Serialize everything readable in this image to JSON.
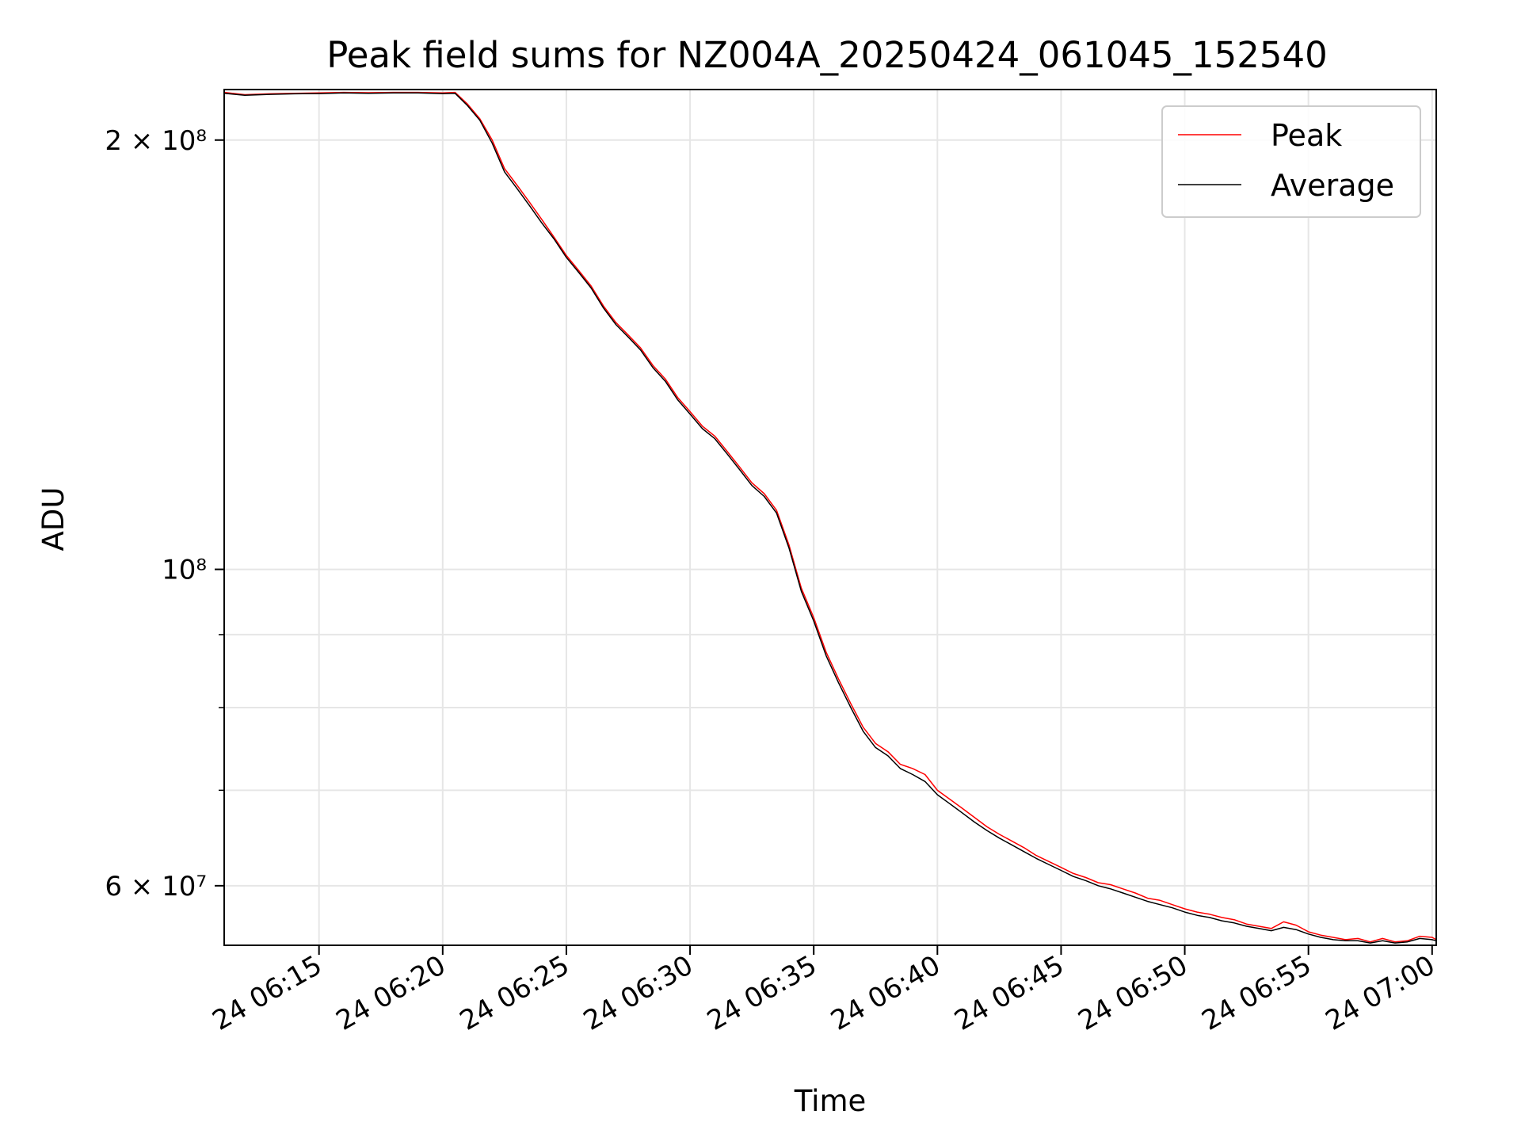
{
  "chart_data": {
    "type": "line",
    "title": "Peak field sums for NZ004A_20250424_061045_152540",
    "xlabel": "Time",
    "ylabel": "ADU",
    "y_scale": "log",
    "grid": true,
    "legend_position": "top-right",
    "x_ticks": [
      "24 06:15",
      "24 06:20",
      "24 06:25",
      "24 06:30",
      "24 06:35",
      "24 06:40",
      "24 06:45",
      "24 06:50",
      "24 06:55",
      "24 07:00"
    ],
    "y_ticks": [
      "2 × 10⁸",
      "10⁸",
      "6 × 10⁷"
    ],
    "x_range": [
      "06:11:10",
      "07:00:10"
    ],
    "y_range": [
      54500000,
      217000000
    ],
    "series": [
      {
        "name": "Peak",
        "color": "#ff0000",
        "x": [
          "06:11:10",
          "06:12:00",
          "06:13:00",
          "06:14:00",
          "06:15:00",
          "06:16:00",
          "06:17:00",
          "06:18:00",
          "06:19:00",
          "06:20:00",
          "06:20:30",
          "06:21:00",
          "06:21:30",
          "06:22:00",
          "06:22:30",
          "06:23:00",
          "06:23:30",
          "06:24:00",
          "06:24:30",
          "06:25:00",
          "06:25:30",
          "06:26:00",
          "06:26:30",
          "06:27:00",
          "06:27:30",
          "06:28:00",
          "06:28:30",
          "06:29:00",
          "06:29:30",
          "06:30:00",
          "06:30:30",
          "06:31:00",
          "06:31:30",
          "06:32:00",
          "06:32:30",
          "06:33:00",
          "06:33:30",
          "06:34:00",
          "06:34:30",
          "06:35:00",
          "06:35:30",
          "06:36:00",
          "06:36:30",
          "06:37:00",
          "06:37:30",
          "06:38:00",
          "06:38:30",
          "06:39:00",
          "06:39:30",
          "06:40:00",
          "06:40:30",
          "06:41:00",
          "06:41:30",
          "06:42:00",
          "06:42:30",
          "06:43:00",
          "06:43:30",
          "06:44:00",
          "06:44:30",
          "06:45:00",
          "06:45:30",
          "06:46:00",
          "06:46:30",
          "06:47:00",
          "06:47:30",
          "06:48:00",
          "06:48:30",
          "06:49:00",
          "06:49:30",
          "06:50:00",
          "06:50:30",
          "06:51:00",
          "06:51:30",
          "06:52:00",
          "06:52:30",
          "06:53:00",
          "06:53:30",
          "06:54:00",
          "06:54:30",
          "06:55:00",
          "06:55:30",
          "06:56:00",
          "06:56:30",
          "06:57:00",
          "06:57:30",
          "06:58:00",
          "06:58:30",
          "06:59:00",
          "06:59:30",
          "07:00:00",
          "07:00:10"
        ],
        "y": [
          216000000,
          215200000,
          215500000,
          215700000,
          215800000,
          216000000,
          215900000,
          216000000,
          216000000,
          215800000,
          216000000,
          212000000,
          207000000,
          200000000,
          191000000,
          186000000,
          181000000,
          176000000,
          171000000,
          166000000,
          162000000,
          158000000,
          153000000,
          149000000,
          146000000,
          143000000,
          139000000,
          136000000,
          132000000,
          129000000,
          126000000,
          124000000,
          121000000,
          118000000,
          115000000,
          113000000,
          110000000,
          104000000,
          97000000,
          92500000,
          87500000,
          83800000,
          80500000,
          77500000,
          75500000,
          74500000,
          73000000,
          72500000,
          71800000,
          70000000,
          69000000,
          68000000,
          67000000,
          66000000,
          65200000,
          64500000,
          63800000,
          63000000,
          62400000,
          61800000,
          61200000,
          60800000,
          60300000,
          60100000,
          59700000,
          59300000,
          58800000,
          58600000,
          58200000,
          57800000,
          57500000,
          57300000,
          57000000,
          56800000,
          56400000,
          56200000,
          56000000,
          56600000,
          56300000,
          55700000,
          55400000,
          55200000,
          55000000,
          55100000,
          54800000,
          55100000,
          54800000,
          54900000,
          55300000,
          55200000,
          55000000
        ]
      },
      {
        "name": "Average",
        "color": "#000000",
        "x": [
          "06:11:10",
          "06:12:00",
          "06:13:00",
          "06:14:00",
          "06:15:00",
          "06:16:00",
          "06:17:00",
          "06:18:00",
          "06:19:00",
          "06:20:00",
          "06:20:30",
          "06:21:00",
          "06:21:30",
          "06:22:00",
          "06:22:30",
          "06:23:00",
          "06:23:30",
          "06:24:00",
          "06:24:30",
          "06:25:00",
          "06:25:30",
          "06:26:00",
          "06:26:30",
          "06:27:00",
          "06:27:30",
          "06:28:00",
          "06:28:30",
          "06:29:00",
          "06:29:30",
          "06:30:00",
          "06:30:30",
          "06:31:00",
          "06:31:30",
          "06:32:00",
          "06:32:30",
          "06:33:00",
          "06:33:30",
          "06:34:00",
          "06:34:30",
          "06:35:00",
          "06:35:30",
          "06:36:00",
          "06:36:30",
          "06:37:00",
          "06:37:30",
          "06:38:00",
          "06:38:30",
          "06:39:00",
          "06:39:30",
          "06:40:00",
          "06:40:30",
          "06:41:00",
          "06:41:30",
          "06:42:00",
          "06:42:30",
          "06:43:00",
          "06:43:30",
          "06:44:00",
          "06:44:30",
          "06:45:00",
          "06:45:30",
          "06:46:00",
          "06:46:30",
          "06:47:00",
          "06:47:30",
          "06:48:00",
          "06:48:30",
          "06:49:00",
          "06:49:30",
          "06:50:00",
          "06:50:30",
          "06:51:00",
          "06:51:30",
          "06:52:00",
          "06:52:30",
          "06:53:00",
          "06:53:30",
          "06:54:00",
          "06:54:30",
          "06:55:00",
          "06:55:30",
          "06:56:00",
          "06:56:30",
          "06:57:00",
          "06:57:30",
          "06:58:00",
          "06:58:30",
          "06:59:00",
          "06:59:30",
          "07:00:00",
          "07:00:10"
        ],
        "y": [
          215700000,
          215000000,
          215300000,
          215500000,
          215600000,
          215800000,
          215700000,
          215800000,
          215800000,
          215600000,
          215700000,
          211500000,
          206500000,
          199000000,
          190000000,
          185000000,
          180000000,
          175000000,
          170500000,
          165500000,
          161500000,
          157500000,
          152500000,
          148500000,
          145500000,
          142500000,
          138500000,
          135500000,
          131500000,
          128500000,
          125500000,
          123500000,
          120500000,
          117500000,
          114500000,
          112500000,
          109500000,
          103500000,
          96500000,
          92000000,
          87000000,
          83300000,
          80000000,
          77000000,
          75000000,
          74000000,
          72500000,
          71800000,
          71000000,
          69500000,
          68500000,
          67500000,
          66500000,
          65600000,
          64800000,
          64100000,
          63400000,
          62700000,
          62100000,
          61500000,
          60900000,
          60500000,
          60000000,
          59700000,
          59300000,
          58900000,
          58500000,
          58200000,
          57900000,
          57500000,
          57200000,
          57000000,
          56700000,
          56500000,
          56200000,
          56000000,
          55800000,
          56100000,
          55900000,
          55500000,
          55200000,
          55000000,
          54900000,
          54900000,
          54700000,
          54900000,
          54700000,
          54800000,
          55100000,
          55000000,
          54900000
        ]
      }
    ]
  }
}
